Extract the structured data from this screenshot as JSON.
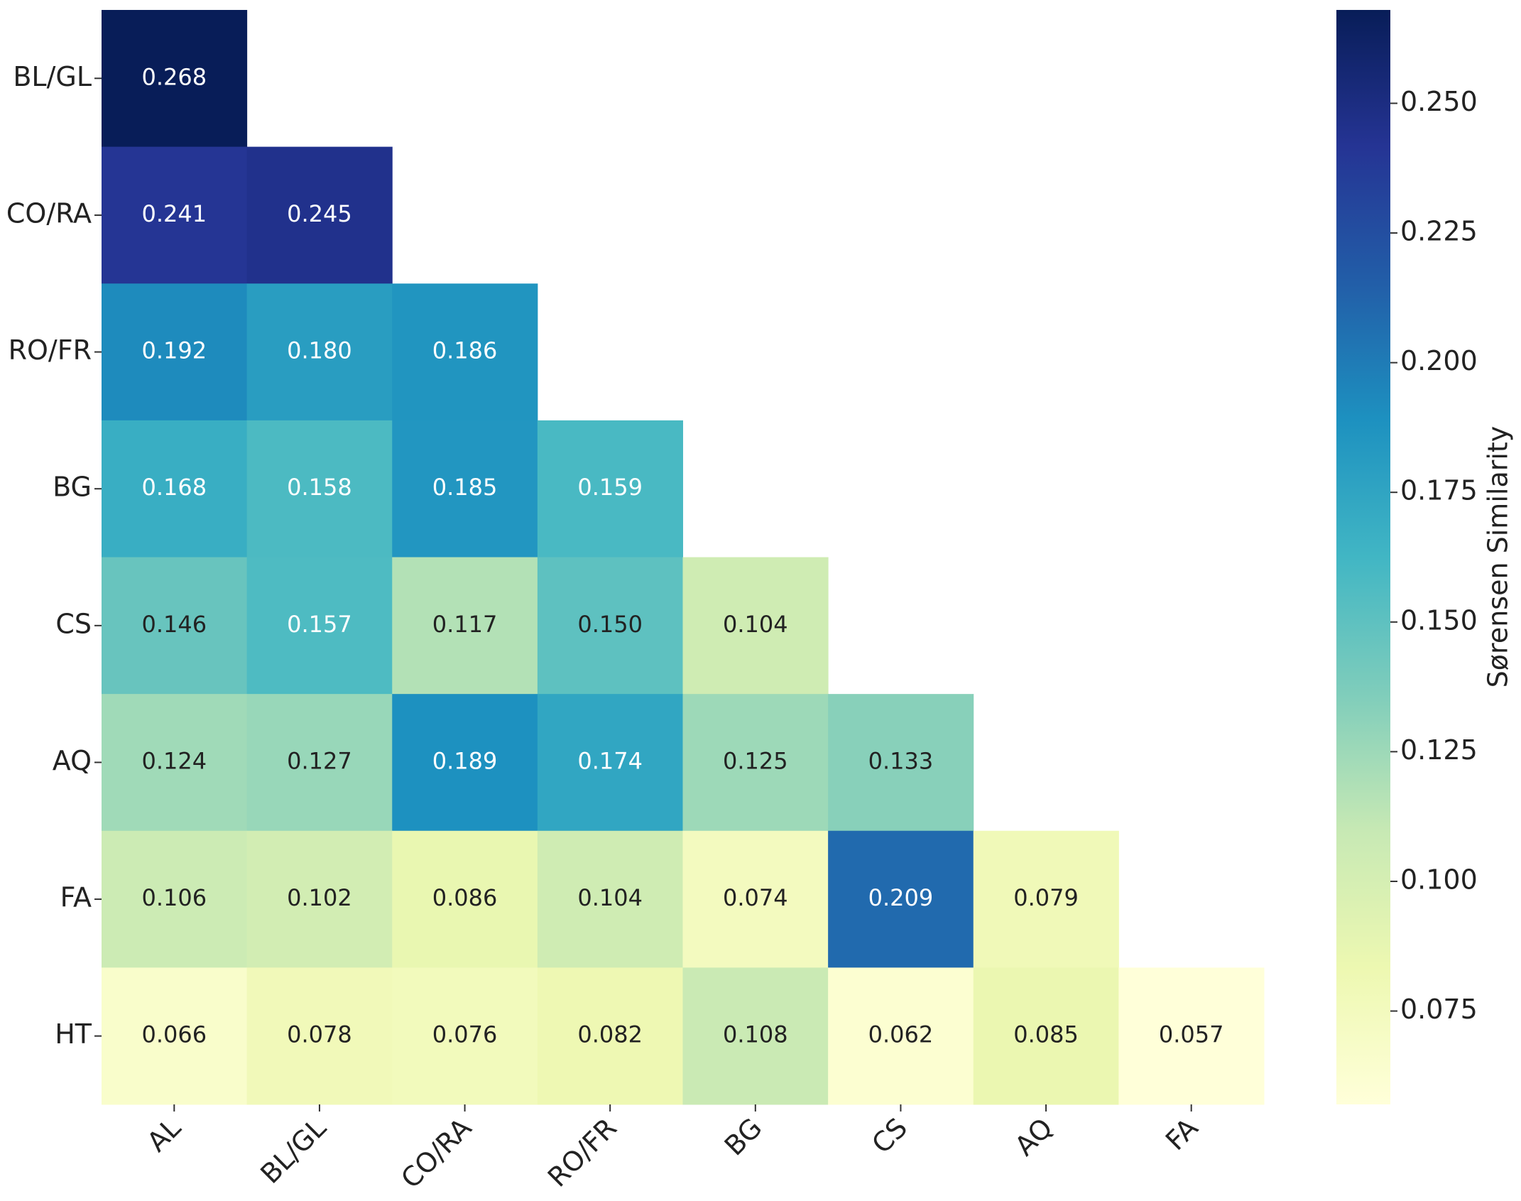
{
  "chart_data": {
    "type": "heatmap",
    "x_categories": [
      "AL",
      "BL/GL",
      "CO/RA",
      "RO/FR",
      "BG",
      "CS",
      "AQ",
      "FA"
    ],
    "y_categories": [
      "BL/GL",
      "CO/RA",
      "RO/FR",
      "BG",
      "CS",
      "AQ",
      "FA",
      "HT"
    ],
    "values": [
      [
        0.268,
        null,
        null,
        null,
        null,
        null,
        null,
        null
      ],
      [
        0.241,
        0.245,
        null,
        null,
        null,
        null,
        null,
        null
      ],
      [
        0.192,
        0.18,
        0.186,
        null,
        null,
        null,
        null,
        null
      ],
      [
        0.168,
        0.158,
        0.185,
        0.159,
        null,
        null,
        null,
        null
      ],
      [
        0.146,
        0.157,
        0.117,
        0.15,
        0.104,
        null,
        null,
        null
      ],
      [
        0.124,
        0.127,
        0.189,
        0.174,
        0.125,
        0.133,
        null,
        null
      ],
      [
        0.106,
        0.102,
        0.086,
        0.104,
        0.074,
        0.209,
        0.079,
        null
      ],
      [
        0.066,
        0.078,
        0.076,
        0.082,
        0.108,
        0.062,
        0.085,
        0.057
      ]
    ],
    "value_labels": [
      [
        "0.268",
        null,
        null,
        null,
        null,
        null,
        null,
        null
      ],
      [
        "0.241",
        "0.245",
        null,
        null,
        null,
        null,
        null,
        null
      ],
      [
        "0.192",
        "0.180",
        "0.186",
        null,
        null,
        null,
        null,
        null
      ],
      [
        "0.168",
        "0.158",
        "0.185",
        "0.159",
        null,
        null,
        null,
        null
      ],
      [
        "0.146",
        "0.157",
        "0.117",
        "0.150",
        "0.104",
        null,
        null,
        null
      ],
      [
        "0.124",
        "0.127",
        "0.189",
        "0.174",
        "0.125",
        "0.133",
        null,
        null
      ],
      [
        "0.106",
        "0.102",
        "0.086",
        "0.104",
        "0.074",
        "0.209",
        "0.079",
        null
      ],
      [
        "0.066",
        "0.078",
        "0.076",
        "0.082",
        "0.108",
        "0.062",
        "0.085",
        "0.057"
      ]
    ],
    "colorbar_label": "Sørensen Similarity",
    "clim": [
      0.057,
      0.268
    ],
    "cticks": [
      0.075,
      {
        "value": 0.1,
        "label": "0.100"
      },
      0.125,
      {
        "value": 0.15,
        "label": "0.150"
      },
      0.175,
      {
        "value": 0.2,
        "label": "0.200"
      },
      0.225,
      {
        "value": 0.25,
        "label": "0.250"
      }
    ],
    "colormap": [
      "#ffffd9",
      "#edf8b1",
      "#c7e9b4",
      "#7fcdbb",
      "#41b6c4",
      "#1d91c0",
      "#225ea8",
      "#253494",
      "#081d58"
    ]
  }
}
